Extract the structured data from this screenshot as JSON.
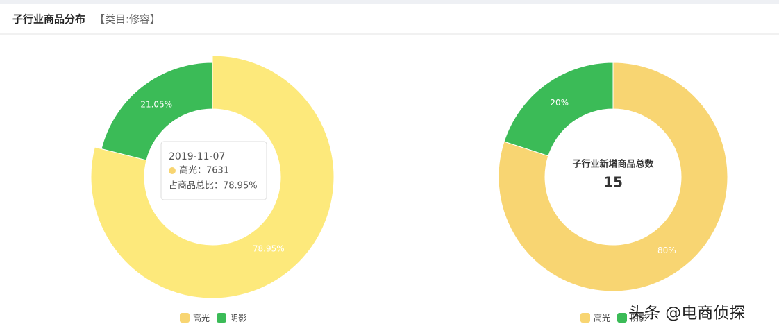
{
  "header": {
    "title": "子行业商品分布",
    "subtitle": "【类目:修容】"
  },
  "chart_data": [
    {
      "type": "pie",
      "donut": true,
      "categories": [
        "高光",
        "阴影"
      ],
      "values": [
        78.95,
        21.05
      ],
      "value_labels": [
        "78.95%",
        "21.05%"
      ],
      "colors": [
        "#f8d572",
        "#3bbb57"
      ],
      "highlight": 0,
      "highlight_color": "#fde97b",
      "tooltip": {
        "title": "2019-11-07",
        "lines": [
          "高光：7631",
          "占商品总比：78.95%"
        ]
      }
    },
    {
      "type": "pie",
      "donut": true,
      "categories": [
        "高光",
        "阴影"
      ],
      "values": [
        80,
        20
      ],
      "value_labels": [
        "80%",
        "20%"
      ],
      "colors": [
        "#f8d572",
        "#3bbb57"
      ],
      "center_label": "子行业新增商品总数",
      "center_value": 15
    }
  ],
  "watermark": "头条 @电商侦探"
}
